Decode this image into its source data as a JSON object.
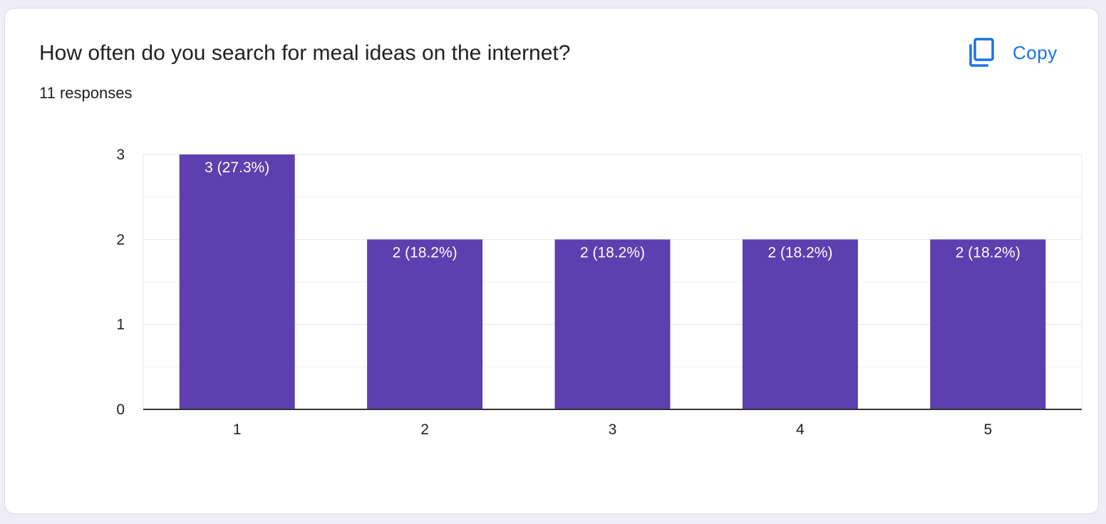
{
  "card": {
    "title": "How often do you search for meal ideas on the internet?",
    "responses": "11 responses"
  },
  "toolbar": {
    "copy_label": "Copy",
    "copy_icon": "copy-icon"
  },
  "colors": {
    "bar": "#5e3fb0",
    "accent": "#1a73e8",
    "axis": "#333333",
    "grid": "#e6e6e6",
    "minor_grid": "#f3f3f3"
  },
  "chart_data": {
    "type": "bar",
    "categories": [
      "1",
      "2",
      "3",
      "4",
      "5"
    ],
    "values": [
      3,
      2,
      2,
      2,
      2
    ],
    "labels": [
      "3 (27.3%)",
      "2 (18.2%)",
      "2 (18.2%)",
      "2 (18.2%)",
      "2 (18.2%)"
    ],
    "yticks": [
      "0",
      "1",
      "2",
      "3"
    ],
    "ylim": [
      0,
      3
    ],
    "grid": true,
    "legend": "none"
  }
}
